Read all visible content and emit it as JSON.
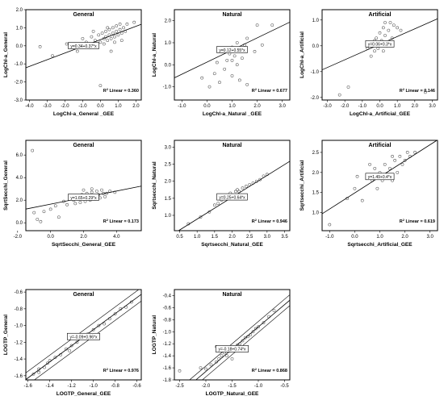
{
  "chart_data": [
    {
      "type": "scatter",
      "id": "p1",
      "title": "General",
      "xlabel": "LogChl-a_General _GEE",
      "ylabel": "LogChl-a_General",
      "xlim": [
        -4.2,
        2.3
      ],
      "ylim": [
        -3.0,
        2.0
      ],
      "xticks": [
        "-4.0",
        "-3.0",
        "-2.0",
        "-1.0",
        "0.0",
        "1.0",
        "2.0"
      ],
      "xtick_values": [
        -4,
        -3,
        -2,
        -1,
        0,
        1,
        2
      ],
      "yticks": [
        "-3.0",
        "-2.0",
        "-1.0",
        "0.0",
        "1.0",
        "2.0"
      ],
      "ytick_values": [
        -3,
        -2,
        -1,
        0,
        1,
        2
      ],
      "fit": {
        "intercept": 0.34,
        "slope": 0.37
      },
      "equation": "y=0.34+0.37*x",
      "r2_label": "Linear = 0.360",
      "points": [
        [
          -3.4,
          -0.05
        ],
        [
          -2.7,
          -0.55
        ],
        [
          -1.9,
          0.1
        ],
        [
          -1.3,
          -0.3
        ],
        [
          -1.0,
          0.4
        ],
        [
          -0.8,
          0.2
        ],
        [
          -0.6,
          -0.1
        ],
        [
          -0.5,
          0.5
        ],
        [
          -0.3,
          0.3
        ],
        [
          -0.2,
          0.0
        ],
        [
          -0.1,
          0.6
        ],
        [
          0.0,
          0.2
        ],
        [
          0.1,
          0.7
        ],
        [
          0.2,
          0.4
        ],
        [
          0.2,
          0.1
        ],
        [
          0.3,
          0.8
        ],
        [
          0.3,
          0.5
        ],
        [
          0.4,
          0.3
        ],
        [
          0.5,
          0.9
        ],
        [
          0.5,
          0.6
        ],
        [
          0.6,
          0.4
        ],
        [
          0.7,
          1.0
        ],
        [
          0.7,
          0.7
        ],
        [
          0.8,
          0.5
        ],
        [
          0.9,
          1.1
        ],
        [
          0.9,
          0.8
        ],
        [
          1.0,
          0.6
        ],
        [
          1.1,
          1.2
        ],
        [
          1.1,
          0.9
        ],
        [
          1.2,
          0.7
        ],
        [
          1.3,
          1.0
        ],
        [
          1.4,
          0.8
        ],
        [
          1.5,
          1.2
        ],
        [
          0.6,
          -0.3
        ],
        [
          0.0,
          -2.2
        ],
        [
          0.8,
          0.2
        ],
        [
          1.2,
          0.3
        ],
        [
          1.9,
          1.3
        ],
        [
          -0.4,
          0.8
        ],
        [
          0.4,
          1.0
        ]
      ],
      "x_pos": "outer-bottom"
    },
    {
      "type": "scatter",
      "id": "p2",
      "title": "Natural",
      "xlabel": "LogChl-a_Natural _GEE",
      "ylabel": "LogChl-a_Natural",
      "xlim": [
        -1.3,
        3.3
      ],
      "ylim": [
        -1.6,
        2.5
      ],
      "xticks": [
        "-1.0",
        "0.0",
        "1.0",
        "2.0",
        "3.0"
      ],
      "xtick_values": [
        -1,
        0,
        1,
        2,
        3
      ],
      "yticks": [
        "-1.0",
        "0.0",
        "1.0",
        "2.0"
      ],
      "ytick_values": [
        -1,
        0,
        1,
        2
      ],
      "fit": {
        "intercept": 0.12,
        "slope": 0.55
      },
      "equation": "y=0.12+0.55*x",
      "r2_label": "Linear = 0.677",
      "points": [
        [
          -0.2,
          -0.6
        ],
        [
          0.1,
          -1.0
        ],
        [
          0.3,
          -0.4
        ],
        [
          0.4,
          0.1
        ],
        [
          0.5,
          -0.8
        ],
        [
          0.6,
          0.6
        ],
        [
          0.7,
          -0.2
        ],
        [
          0.8,
          0.2
        ],
        [
          0.9,
          0.5
        ],
        [
          1.0,
          -0.5
        ],
        [
          1.0,
          0.8
        ],
        [
          1.1,
          0.4
        ],
        [
          1.2,
          0.0
        ],
        [
          1.2,
          1.0
        ],
        [
          1.3,
          0.7
        ],
        [
          1.3,
          -0.7
        ],
        [
          1.4,
          0.3
        ],
        [
          1.5,
          0.9
        ],
        [
          1.6,
          1.2
        ],
        [
          1.6,
          -0.9
        ],
        [
          1.9,
          0.6
        ],
        [
          2.0,
          1.8
        ],
        [
          2.2,
          0.9
        ],
        [
          2.6,
          1.8
        ],
        [
          1.0,
          0.2
        ]
      ],
      "x_pos": "outer-bottom"
    },
    {
      "type": "scatter",
      "id": "p3",
      "title": "Artificial",
      "xlabel": "LogChl-a_Artificial_GEE",
      "ylabel": "LogChl-a_Artificial",
      "xlim": [
        -3.3,
        3.3
      ],
      "ylim": [
        -2.1,
        1.4
      ],
      "xticks": [
        "-3.0",
        "-2.0",
        "-1.0",
        "0.0",
        "1.0",
        "2.0",
        "3.0"
      ],
      "xtick_values": [
        -3,
        -2,
        -1,
        0,
        1,
        2,
        3
      ],
      "yticks": [
        "-2.0",
        "-1.0",
        "0.0",
        "1.0"
      ],
      "ytick_values": [
        -2,
        -1,
        0,
        1
      ],
      "fit": {
        "intercept": 0.06,
        "slope": 0.3
      },
      "equation": "y=0.06+0.3*x",
      "r2_label": "Linear = 0.146",
      "points": [
        [
          -2.3,
          -1.9
        ],
        [
          -1.8,
          -1.6
        ],
        [
          -0.7,
          -0.1
        ],
        [
          -0.5,
          -0.4
        ],
        [
          -0.4,
          0.1
        ],
        [
          -0.3,
          -0.2
        ],
        [
          -0.2,
          0.3
        ],
        [
          -0.1,
          -0.1
        ],
        [
          0.0,
          0.5
        ],
        [
          0.1,
          0.2
        ],
        [
          0.2,
          -0.2
        ],
        [
          0.2,
          0.7
        ],
        [
          0.3,
          0.4
        ],
        [
          0.4,
          0.0
        ],
        [
          0.5,
          0.6
        ],
        [
          0.6,
          0.9
        ],
        [
          0.7,
          0.3
        ],
        [
          0.8,
          0.8
        ],
        [
          1.0,
          0.7
        ],
        [
          1.2,
          0.6
        ],
        [
          2.6,
          -1.8
        ],
        [
          0.3,
          0.9
        ],
        [
          -0.3,
          0.2
        ]
      ],
      "x_pos": "outer-bottom"
    },
    {
      "type": "scatter",
      "id": "p4",
      "title": "General",
      "xlabel": "SqrtSecchi_General_GEE",
      "ylabel": "SqrtSecchi_General",
      "xlim": [
        -1.5,
        5.5
      ],
      "ylim": [
        -0.7,
        7.3
      ],
      "xticks": [
        "-2.0",
        "0.0",
        "2.0",
        "4.0"
      ],
      "xtick_values": [
        -2,
        0,
        2,
        4
      ],
      "yticks": [
        "0.0",
        "2.0",
        "4.0",
        "6.0"
      ],
      "ytick_values": [
        0,
        2,
        4,
        6
      ],
      "fit": {
        "intercept": 1.65,
        "slope": 0.29
      },
      "equation": "y=1.65+0.29*x",
      "r2_label": "Linear = 0.173",
      "points": [
        [
          -1.1,
          6.4
        ],
        [
          -1.0,
          0.9
        ],
        [
          -0.8,
          0.3
        ],
        [
          -0.6,
          0.1
        ],
        [
          -0.4,
          1.0
        ],
        [
          0.0,
          1.2
        ],
        [
          0.3,
          1.5
        ],
        [
          0.5,
          0.5
        ],
        [
          0.8,
          1.9
        ],
        [
          1.0,
          1.6
        ],
        [
          1.2,
          2.2
        ],
        [
          1.4,
          2.0
        ],
        [
          1.5,
          1.7
        ],
        [
          1.6,
          2.4
        ],
        [
          1.7,
          2.1
        ],
        [
          1.8,
          1.8
        ],
        [
          1.9,
          2.5
        ],
        [
          2.0,
          2.2
        ],
        [
          2.1,
          1.9
        ],
        [
          2.2,
          2.6
        ],
        [
          2.3,
          2.3
        ],
        [
          2.4,
          2.0
        ],
        [
          2.5,
          2.7
        ],
        [
          2.6,
          2.4
        ],
        [
          2.7,
          2.1
        ],
        [
          2.8,
          2.8
        ],
        [
          2.9,
          2.5
        ],
        [
          3.0,
          2.2
        ],
        [
          3.1,
          2.9
        ],
        [
          3.2,
          2.6
        ],
        [
          3.3,
          2.3
        ],
        [
          3.4,
          2.6
        ],
        [
          3.6,
          2.8
        ],
        [
          3.9,
          2.7
        ],
        [
          2.0,
          2.9
        ],
        [
          2.5,
          3.0
        ]
      ],
      "x_pos": "bottom"
    },
    {
      "type": "scatter",
      "id": "p5",
      "title": "Natural",
      "xlabel": "Sqrtsecchi_Natural_GEE",
      "ylabel": "Sqrtsecchi_Natural",
      "xlim": [
        0.35,
        3.65
      ],
      "ylim": [
        0.55,
        3.2
      ],
      "xticks": [
        "0.5",
        "1.0",
        "1.5",
        "2.0",
        "2.5",
        "3.0",
        "3.5"
      ],
      "xtick_values": [
        0.5,
        1,
        1.5,
        2,
        2.5,
        3,
        3.5
      ],
      "yticks": [
        "1.0",
        "1.5",
        "2.0",
        "2.5",
        "3.0"
      ],
      "ytick_values": [
        1,
        1.5,
        2,
        2.5,
        3
      ],
      "fit": {
        "intercept": 0.25,
        "slope": 0.64
      },
      "equation": "y=0.25+0.64*x",
      "r2_label": "Linear = 0.946",
      "points": [
        [
          0.75,
          0.75
        ],
        [
          1.1,
          0.95
        ],
        [
          1.35,
          1.1
        ],
        [
          1.5,
          1.3
        ],
        [
          1.6,
          1.35
        ],
        [
          1.7,
          1.45
        ],
        [
          1.8,
          1.55
        ],
        [
          1.85,
          1.5
        ],
        [
          1.9,
          1.6
        ],
        [
          2.0,
          1.6
        ],
        [
          2.05,
          1.55
        ],
        [
          2.1,
          1.7
        ],
        [
          2.15,
          1.75
        ],
        [
          2.2,
          1.7
        ],
        [
          2.3,
          1.8
        ],
        [
          2.4,
          1.85
        ],
        [
          2.5,
          1.9
        ],
        [
          2.6,
          1.95
        ],
        [
          2.7,
          2.0
        ],
        [
          2.8,
          2.05
        ],
        [
          2.9,
          2.15
        ],
        [
          3.0,
          2.2
        ],
        [
          1.95,
          1.65
        ]
      ],
      "x_pos": "bottom"
    },
    {
      "type": "scatter",
      "id": "p6",
      "title": "Artificial",
      "xlabel": "Sqrtsecchi_Artificial_GEE",
      "ylabel": "Sqrtsecchi_Artificial",
      "xlim": [
        -1.3,
        3.3
      ],
      "ylim": [
        0.55,
        2.8
      ],
      "xticks": [
        "-1.0",
        "0.0",
        "1.0",
        "2.0",
        "3.0"
      ],
      "xtick_values": [
        -1,
        0,
        1,
        2,
        3
      ],
      "yticks": [
        "1.0",
        "1.5",
        "2.0",
        "2.5"
      ],
      "ytick_values": [
        1,
        1.5,
        2,
        2.5
      ],
      "fit": {
        "intercept": 1.49,
        "slope": 0.4
      },
      "equation": "y=1.49+0.4*x",
      "r2_label": "Linear = 0.619",
      "points": [
        [
          -1.0,
          0.7
        ],
        [
          -0.3,
          1.35
        ],
        [
          0.0,
          1.6
        ],
        [
          0.1,
          1.9
        ],
        [
          0.3,
          1.3
        ],
        [
          0.5,
          1.9
        ],
        [
          0.7,
          1.8
        ],
        [
          0.8,
          2.1
        ],
        [
          0.9,
          1.6
        ],
        [
          1.0,
          2.0
        ],
        [
          1.1,
          1.8
        ],
        [
          1.2,
          2.2
        ],
        [
          1.3,
          1.9
        ],
        [
          1.4,
          2.1
        ],
        [
          1.5,
          1.8
        ],
        [
          1.6,
          2.3
        ],
        [
          1.7,
          2.0
        ],
        [
          1.8,
          2.4
        ],
        [
          1.9,
          2.2
        ],
        [
          2.0,
          2.3
        ],
        [
          2.1,
          2.5
        ],
        [
          2.2,
          2.4
        ],
        [
          2.4,
          2.5
        ],
        [
          1.5,
          2.4
        ],
        [
          0.6,
          2.2
        ]
      ],
      "x_pos": "bottom"
    },
    {
      "type": "scatter",
      "id": "p7",
      "title": "General",
      "xlabel": "LOGTP_General_GEE",
      "ylabel": "LOGTP_General",
      "xlim": [
        -1.62,
        -0.56
      ],
      "ylim": [
        -1.65,
        -0.57
      ],
      "xticks": [
        "-1.6",
        "-1.4",
        "-1.2",
        "-1.0",
        "-0.8",
        "-0.6"
      ],
      "xtick_values": [
        -1.6,
        -1.4,
        -1.2,
        -1.0,
        -0.8,
        -0.6
      ],
      "yticks": [
        "-1.6",
        "-1.4",
        "-1.2",
        "-1.0",
        "-0.8",
        "-0.6"
      ],
      "ytick_values": [
        -1.6,
        -1.4,
        -1.2,
        -1.0,
        -0.8,
        -0.6
      ],
      "fit": {
        "intercept": -0.09,
        "slope": 0.96
      },
      "equation": "y=-0.09+0.96*x",
      "ci_offset": 0.08,
      "r2_label": "Linear = 0.976",
      "points": [
        [
          -1.55,
          -1.58
        ],
        [
          -1.5,
          -1.52
        ],
        [
          -1.45,
          -1.5
        ],
        [
          -1.42,
          -1.45
        ],
        [
          -1.4,
          -1.42
        ],
        [
          -1.35,
          -1.38
        ],
        [
          -1.3,
          -1.35
        ],
        [
          -1.25,
          -1.28
        ],
        [
          -1.22,
          -1.3
        ],
        [
          -1.2,
          -1.24
        ],
        [
          -1.15,
          -1.2
        ],
        [
          -1.1,
          -1.15
        ],
        [
          -1.05,
          -1.1
        ],
        [
          -1.0,
          -1.05
        ],
        [
          -0.95,
          -1.0
        ],
        [
          -0.9,
          -0.98
        ],
        [
          -0.85,
          -0.92
        ],
        [
          -0.8,
          -0.86
        ],
        [
          -0.75,
          -0.8
        ],
        [
          -0.7,
          -0.78
        ],
        [
          -0.65,
          -0.72
        ],
        [
          -1.5,
          -1.56
        ]
      ],
      "x_pos": "bottom"
    },
    {
      "type": "scatter",
      "id": "p8",
      "title": "Natural",
      "xlabel": "LOGTP_Natural_GEE",
      "ylabel": "LOGTP_Natural",
      "xlim": [
        -2.6,
        -0.4
      ],
      "ylim": [
        -1.8,
        -0.3
      ],
      "xticks": [
        "-2.5",
        "-2.0",
        "-1.5",
        "-1.0",
        "-0.5"
      ],
      "xtick_values": [
        -2.5,
        -2,
        -1.5,
        -1,
        -0.5
      ],
      "yticks": [
        "-1.8",
        "-1.6",
        "-1.4",
        "-1.2",
        "-1.0",
        "-0.8",
        "-0.6",
        "-0.4"
      ],
      "ytick_values": [
        -1.8,
        -1.6,
        -1.4,
        -1.2,
        -1,
        -0.8,
        -0.6,
        -0.4
      ],
      "fit": {
        "intercept": -0.18,
        "slope": 0.74
      },
      "equation": "y=-0.18+0.74*x",
      "ci_offset": 0.09,
      "r2_label": "Linear = 0.868",
      "points": [
        [
          -2.5,
          -1.65
        ],
        [
          -2.1,
          -1.6
        ],
        [
          -2.0,
          -1.62
        ],
        [
          -1.9,
          -1.55
        ],
        [
          -1.8,
          -1.5
        ],
        [
          -1.75,
          -1.45
        ],
        [
          -1.7,
          -1.4
        ],
        [
          -1.65,
          -1.35
        ],
        [
          -1.6,
          -1.4
        ],
        [
          -1.55,
          -1.32
        ],
        [
          -1.5,
          -1.28
        ],
        [
          -1.45,
          -1.3
        ],
        [
          -1.4,
          -1.22
        ],
        [
          -1.35,
          -1.2
        ],
        [
          -1.3,
          -1.15
        ],
        [
          -1.25,
          -1.1
        ],
        [
          -1.2,
          -1.08
        ],
        [
          -1.15,
          -1.05
        ],
        [
          -1.1,
          -1.0
        ],
        [
          -1.05,
          -0.95
        ],
        [
          -1.0,
          -0.92
        ],
        [
          -0.9,
          -0.85
        ],
        [
          -0.8,
          -0.75
        ],
        [
          -0.7,
          -0.65
        ],
        [
          -1.8,
          -1.25
        ],
        [
          -1.5,
          -1.45
        ]
      ],
      "x_pos": "bottom"
    }
  ]
}
